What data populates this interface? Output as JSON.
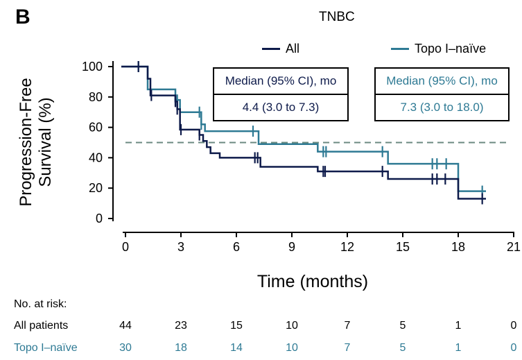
{
  "panel_label": "B",
  "chart_data": {
    "type": "line",
    "subtype": "kaplan-meier step",
    "title": "TNBC",
    "xlabel": "Time (months)",
    "ylabel_line1": "Progression-Free",
    "ylabel_line2": "Survival (%)",
    "xlim": [
      0,
      21
    ],
    "ylim": [
      0,
      100
    ],
    "xticks": [
      "0",
      "3",
      "6",
      "9",
      "12",
      "15",
      "18",
      "21"
    ],
    "yticks": [
      "0",
      "20",
      "40",
      "60",
      "80",
      "100"
    ],
    "reference_line": {
      "y": 50,
      "style": "dashed",
      "color": "#6b8a80"
    },
    "legend_placement": "top-right",
    "series": [
      {
        "name": "All",
        "color": "#0d1a4a",
        "steps": [
          [
            0,
            100
          ],
          [
            1.2,
            92
          ],
          [
            1.35,
            81
          ],
          [
            2.7,
            77
          ],
          [
            2.8,
            72
          ],
          [
            2.95,
            58.5
          ],
          [
            4.0,
            55
          ],
          [
            4.2,
            51
          ],
          [
            4.4,
            47
          ],
          [
            4.6,
            43
          ],
          [
            5.1,
            40
          ],
          [
            7.3,
            34
          ],
          [
            10.4,
            31
          ],
          [
            14.2,
            26
          ],
          [
            18.0,
            13
          ],
          [
            19.5,
            13
          ]
        ],
        "censored": [
          0.7,
          1.4,
          2.7,
          2.8,
          3.0,
          4.0,
          7.0,
          7.15,
          10.7,
          10.8,
          13.9,
          16.6,
          16.85,
          17.3,
          19.3
        ],
        "median_label": "Median (95% CI), mo",
        "median_value": "4.4 (3.0 to 7.3)"
      },
      {
        "name": "Topo I–naïve",
        "color": "#2e7a94",
        "steps": [
          [
            0,
            100
          ],
          [
            1.2,
            85
          ],
          [
            2.7,
            78
          ],
          [
            2.95,
            70
          ],
          [
            4.1,
            62
          ],
          [
            4.3,
            57.5
          ],
          [
            7.2,
            49
          ],
          [
            10.4,
            44
          ],
          [
            14.2,
            36
          ],
          [
            18.0,
            18
          ],
          [
            19.5,
            18
          ]
        ],
        "censored": [
          0.7,
          2.7,
          2.8,
          4.0,
          4.1,
          6.9,
          10.7,
          10.85,
          13.9,
          16.6,
          16.85,
          17.35,
          19.3
        ],
        "median_label": "Median (95% CI), mo",
        "median_value": "7.3 (3.0 to 18.0)"
      }
    ]
  },
  "risk_table": {
    "header": "No. at risk:",
    "rows": [
      {
        "label": "All patients",
        "color": "#0d1a4a",
        "values": [
          "44",
          "23",
          "15",
          "10",
          "7",
          "5",
          "1",
          "0"
        ]
      },
      {
        "label": "Topo I–naïve",
        "color": "#2e7a94",
        "values": [
          "30",
          "18",
          "14",
          "10",
          "7",
          "5",
          "1",
          "0"
        ]
      }
    ]
  }
}
